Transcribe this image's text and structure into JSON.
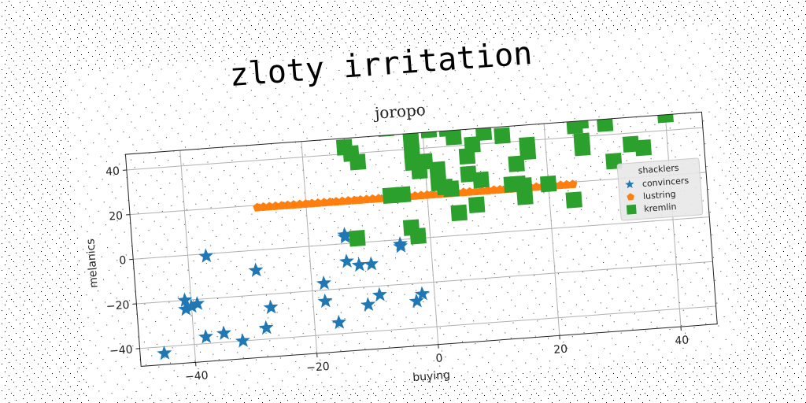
{
  "chart_data": {
    "type": "scatter",
    "suptitle": "zloty irritation",
    "title": "joropo",
    "xlabel": "buying",
    "ylabel": "melanics",
    "xlim": [
      -49,
      46
    ],
    "ylim": [
      -48,
      47
    ],
    "xticks": [
      -40,
      -20,
      0,
      20,
      40
    ],
    "yticks": [
      -40,
      -20,
      0,
      20,
      40
    ],
    "grid": true,
    "legend": {
      "title": "shacklers",
      "placement": "right"
    },
    "series": [
      {
        "name": "convincers",
        "marker": "star",
        "color": "#1f77b4",
        "points": [
          [
            -45,
            -43
          ],
          [
            -41,
            -20
          ],
          [
            -41,
            -24
          ],
          [
            -40,
            -23
          ],
          [
            -39,
            -22
          ],
          [
            -38,
            -37
          ],
          [
            -37,
            -1
          ],
          [
            -35,
            -36
          ],
          [
            -32,
            -40
          ],
          [
            -29,
            -9
          ],
          [
            -28,
            -35
          ],
          [
            -27,
            -26
          ],
          [
            -18,
            -17
          ],
          [
            -18,
            -25
          ],
          [
            -16,
            -35
          ],
          [
            -14,
            -8
          ],
          [
            -14,
            4
          ],
          [
            -14,
            3
          ],
          [
            -12,
            -10
          ],
          [
            -11,
            -28
          ],
          [
            -10,
            -10
          ],
          [
            -9,
            -24
          ],
          [
            -5,
            -3
          ],
          [
            -5,
            -2
          ],
          [
            -3,
            -28
          ],
          [
            -2,
            -25
          ]
        ]
      },
      {
        "name": "lustring",
        "marker": "pentagon",
        "color": "#ff7f0e",
        "points": [
          [
            -28,
            19
          ],
          [
            -27,
            19
          ],
          [
            -26,
            19
          ],
          [
            -25,
            19
          ],
          [
            -24,
            19
          ],
          [
            -23,
            19
          ],
          [
            -22,
            19
          ],
          [
            -21,
            19
          ],
          [
            -20,
            19
          ],
          [
            -19,
            19
          ],
          [
            -18,
            19
          ],
          [
            -17,
            19
          ],
          [
            -16,
            19
          ],
          [
            -15,
            19
          ],
          [
            -14,
            19
          ],
          [
            -13,
            19
          ],
          [
            -12,
            19
          ],
          [
            -11,
            19
          ],
          [
            -10,
            19
          ],
          [
            -9,
            19
          ],
          [
            -8,
            19
          ],
          [
            -7,
            19
          ],
          [
            -6,
            19
          ],
          [
            -5,
            19
          ],
          [
            -4,
            19
          ],
          [
            -3,
            19
          ],
          [
            -2,
            19
          ],
          [
            -1,
            19
          ],
          [
            0,
            19
          ],
          [
            1,
            19
          ],
          [
            2,
            19
          ],
          [
            3,
            19
          ],
          [
            4,
            19
          ],
          [
            5,
            19
          ],
          [
            6,
            19
          ],
          [
            7,
            19
          ],
          [
            8,
            19
          ],
          [
            9,
            19
          ],
          [
            10,
            19
          ],
          [
            11,
            19
          ],
          [
            12,
            19
          ],
          [
            13,
            19
          ],
          [
            14,
            19
          ],
          [
            15,
            19
          ],
          [
            16,
            19
          ],
          [
            17,
            19
          ],
          [
            18,
            19
          ],
          [
            19,
            19
          ],
          [
            20,
            19
          ],
          [
            21,
            19
          ],
          [
            22,
            19
          ],
          [
            23,
            19
          ],
          [
            24,
            19
          ]
        ]
      },
      {
        "name": "kremlin",
        "marker": "square",
        "color": "#2ca02c",
        "points": [
          [
            -13,
            43
          ],
          [
            -12,
            40
          ],
          [
            -11,
            36
          ],
          [
            -12,
            2
          ],
          [
            -6,
            50
          ],
          [
            -6,
            20
          ],
          [
            -4,
            20
          ],
          [
            -3,
            5
          ],
          [
            -2,
            1
          ],
          [
            -2,
            44
          ],
          [
            -2,
            39
          ],
          [
            -2,
            34
          ],
          [
            -1,
            30
          ],
          [
            0,
            34
          ],
          [
            1,
            48
          ],
          [
            2,
            30
          ],
          [
            2,
            24
          ],
          [
            3,
            22
          ],
          [
            4,
            21
          ],
          [
            4,
            48
          ],
          [
            5,
            10
          ],
          [
            5,
            44
          ],
          [
            5,
            50
          ],
          [
            7,
            35
          ],
          [
            7,
            27
          ],
          [
            8,
            13
          ],
          [
            8,
            40
          ],
          [
            9,
            24
          ],
          [
            10,
            45
          ],
          [
            13,
            43
          ],
          [
            14,
            21
          ],
          [
            15,
            21
          ],
          [
            15,
            30
          ],
          [
            16,
            20
          ],
          [
            16,
            15
          ],
          [
            17,
            35
          ],
          [
            17,
            38
          ],
          [
            20,
            20
          ],
          [
            24,
            12
          ],
          [
            25,
            45
          ],
          [
            26,
            38
          ],
          [
            26,
            35
          ],
          [
            26,
            47
          ],
          [
            30,
            45
          ],
          [
            31,
            28
          ],
          [
            34,
            35
          ],
          [
            36,
            33
          ],
          [
            40,
            52
          ],
          [
            40,
            47
          ]
        ]
      }
    ]
  }
}
